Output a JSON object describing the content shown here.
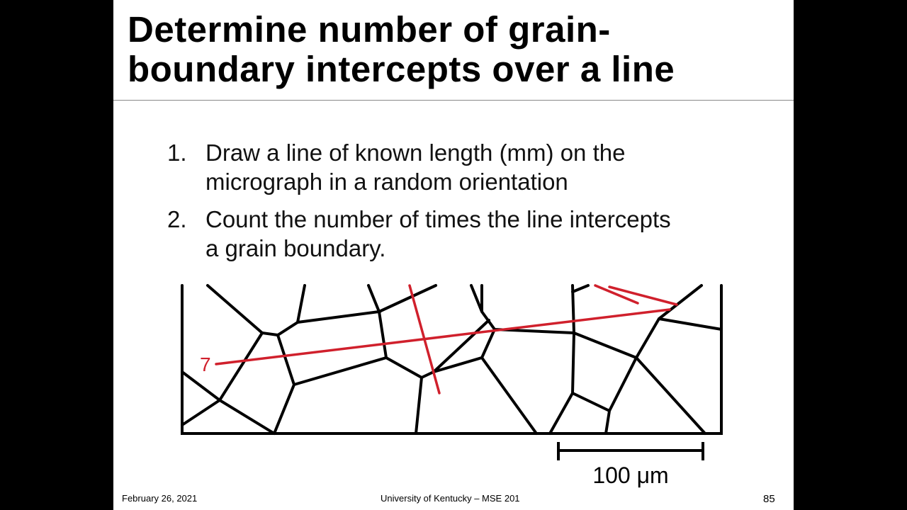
{
  "slide": {
    "title_lines": [
      "Determine number of grain-",
      "boundary intercepts over a line"
    ],
    "list": [
      {
        "marker": "1.",
        "lines": [
          "Draw a line of known length (mm) on the",
          "micrograph in a random orientation"
        ]
      },
      {
        "marker": "2.",
        "lines": [
          "Count the number of times the line intercepts",
          "a grain boundary."
        ]
      }
    ],
    "figure": {
      "line_label": "7",
      "scale_label": "100 μm"
    },
    "footer": {
      "date": "February 26, 2021",
      "course": "University of Kentucky – MSE 201",
      "page": "85"
    }
  }
}
